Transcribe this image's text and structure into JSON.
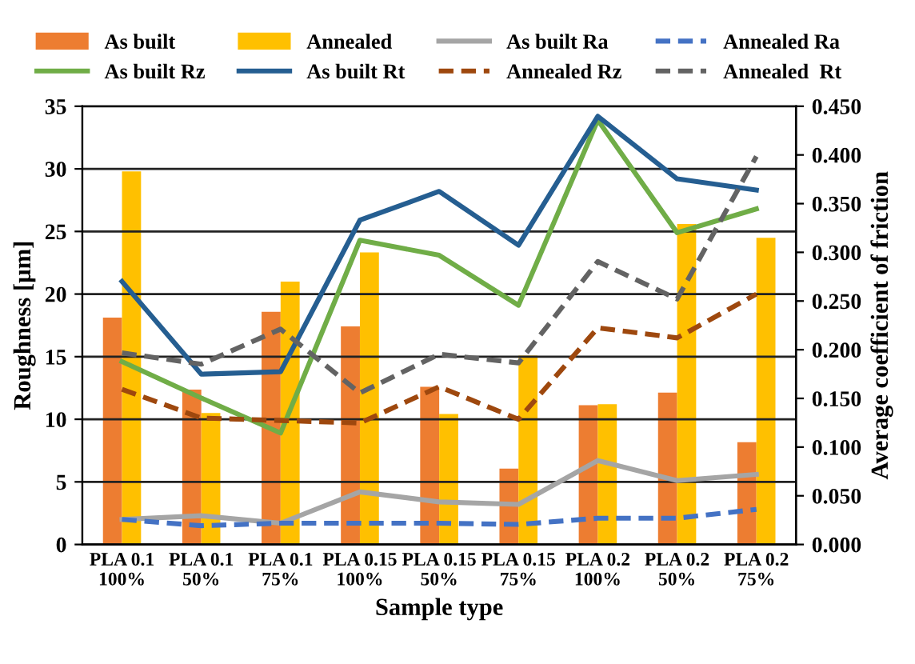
{
  "chart_data": {
    "type": "bar",
    "xlabel": "Sample type",
    "ylabel": "Roughness [µm]",
    "y2label": "Average coefficient of friction",
    "categories": [
      "PLA 0.1\n100%",
      "PLA 0.1\n50%",
      "PLA 0.1\n75%",
      "PLA 0.15\n100%",
      "PLA 0.15\n50%",
      "PLA 0.15\n75%",
      "PLA 0.2\n100%",
      "PLA 0.2\n50%",
      "PLA 0.2\n75%"
    ],
    "series": [
      {
        "name": "As built",
        "axis": "y2",
        "color": "#ed7d31",
        "values": [
          0.233,
          0.159,
          0.239,
          0.224,
          0.162,
          0.078,
          0.143,
          0.156,
          0.105
        ]
      },
      {
        "name": "Annealed",
        "axis": "y2",
        "color": "#ffc000",
        "values": [
          0.383,
          0.135,
          0.27,
          0.3,
          0.134,
          0.194,
          0.144,
          0.329,
          0.315
        ]
      },
      {
        "name": "As built Ra",
        "type": "line",
        "color": "#a5a5a5",
        "line_style": "solid",
        "values": [
          2.0,
          2.3,
          1.7,
          4.2,
          3.4,
          3.2,
          6.7,
          5.1,
          5.6
        ]
      },
      {
        "name": "Annealed Ra",
        "type": "line",
        "color": "#4472c4",
        "line_style": "dashed",
        "values": [
          2.0,
          1.5,
          1.7,
          1.7,
          1.7,
          1.6,
          2.1,
          2.1,
          2.8
        ]
      },
      {
        "name": "As built Rz",
        "type": "line",
        "color": "#70ad47",
        "line_style": "solid",
        "values": [
          14.6,
          11.7,
          8.9,
          24.3,
          23.1,
          19.1,
          33.9,
          24.9,
          26.8
        ]
      },
      {
        "name": "As built Rt",
        "type": "line",
        "color": "#255e91",
        "line_style": "solid",
        "values": [
          21.0,
          13.6,
          13.8,
          25.9,
          28.2,
          23.9,
          34.2,
          29.2,
          28.3
        ]
      },
      {
        "name": "Annealed Rz",
        "type": "line",
        "color": "#9e480e",
        "line_style": "dashed",
        "values": [
          12.4,
          10.1,
          9.9,
          9.7,
          12.6,
          10.0,
          17.3,
          16.5,
          20.0
        ]
      },
      {
        "name": "Annealed  Rt",
        "type": "line",
        "color": "#636363",
        "line_style": "dashed",
        "values": [
          15.3,
          14.4,
          17.2,
          12.1,
          15.2,
          14.5,
          22.6,
          19.6,
          31.0
        ]
      }
    ],
    "ylim": [
      0,
      35
    ],
    "yticks": [
      0,
      5,
      10,
      15,
      20,
      25,
      30,
      35
    ],
    "y2lim": [
      0,
      0.45
    ],
    "y2ticks": [
      {
        "value": 0,
        "label": "0.000"
      },
      {
        "value": 0.05,
        "label": "0.050"
      },
      {
        "value": 0.1,
        "label": "0.100"
      },
      {
        "value": 0.15,
        "label": "0.150"
      },
      {
        "value": 0.2,
        "label": "0.200"
      },
      {
        "value": 0.25,
        "label": "0.250"
      },
      {
        "value": 0.3,
        "label": "0.300"
      },
      {
        "value": 0.35,
        "label": "0.350"
      },
      {
        "value": 0.4,
        "label": "0.400"
      },
      {
        "value": 0.45,
        "label": "0.450"
      }
    ],
    "grid": "y",
    "legend": "top",
    "marker": "none"
  }
}
